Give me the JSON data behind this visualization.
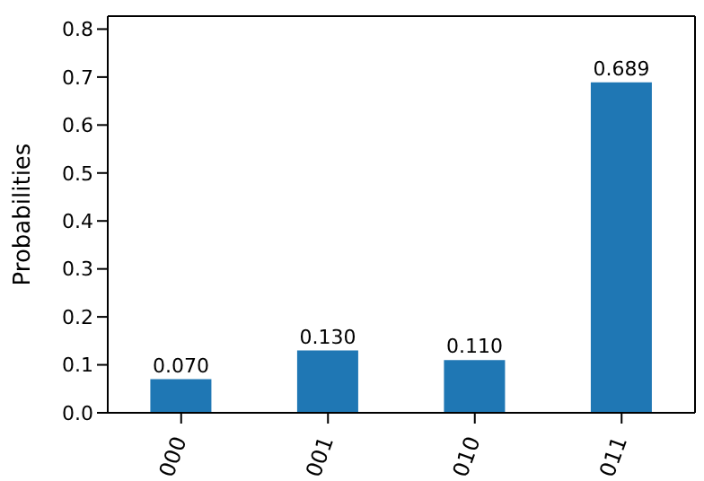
{
  "chart_data": {
    "type": "bar",
    "ylabel": "Probabilities",
    "categories": [
      "000",
      "001",
      "010",
      "011"
    ],
    "values": [
      0.07,
      0.13,
      0.11,
      0.689
    ],
    "value_labels": [
      "0.070",
      "0.130",
      "0.110",
      "0.689"
    ],
    "color": "#1f77b4",
    "ylim": [
      0,
      0.827
    ],
    "yticks": [
      {
        "value": 0,
        "label": "0.0"
      },
      {
        "value": 0.1,
        "label": "0.1"
      },
      {
        "value": 0.2,
        "label": "0.2"
      },
      {
        "value": 0.3,
        "label": "0.3"
      },
      {
        "value": 0.4,
        "label": "0.4"
      },
      {
        "value": 0.5,
        "label": "0.5"
      },
      {
        "value": 0.6,
        "label": "0.6"
      },
      {
        "value": 0.7,
        "label": "0.7"
      },
      {
        "value": 0.8,
        "label": "0.8"
      }
    ],
    "grid": false
  }
}
